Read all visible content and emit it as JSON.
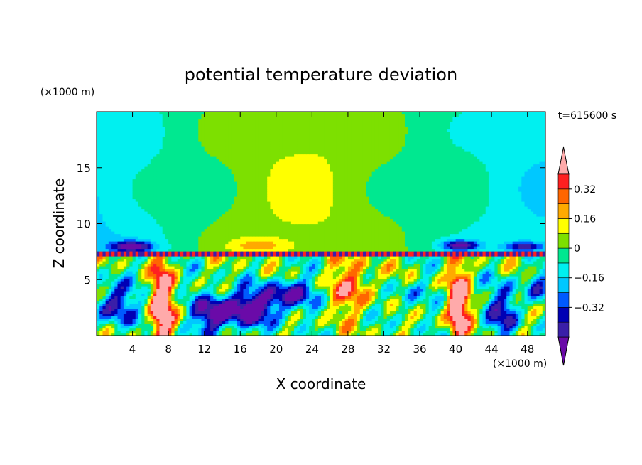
{
  "chart_data": {
    "type": "heatmap",
    "title": "potential temperature deviation",
    "xlabel": "X coordinate",
    "ylabel": "Z coordinate",
    "x_unit": "(×1000 m)",
    "y_unit": "(×1000 m)",
    "time_label": "t=615600 s",
    "xlim": [
      0,
      50
    ],
    "ylim": [
      0,
      20
    ],
    "x_ticks": [
      4,
      8,
      12,
      16,
      20,
      24,
      28,
      32,
      36,
      40,
      44,
      48
    ],
    "y_ticks": [
      5,
      10,
      15
    ],
    "colorbar": {
      "levels": [
        -0.48,
        -0.4,
        -0.32,
        -0.24,
        -0.16,
        -0.08,
        0,
        0.08,
        0.16,
        0.24,
        0.32,
        0.4
      ],
      "colors": [
        "#6a0aa8",
        "#3a1fa8",
        "#0000b4",
        "#005aff",
        "#00c8ff",
        "#00f0f0",
        "#00e890",
        "#7de000",
        "#ffff00",
        "#ffaa00",
        "#ff6600",
        "#ff2020",
        "#ffaaaa"
      ],
      "tick_labels": [
        "0.32",
        "0.16",
        "0",
        "-0.16",
        "-0.32"
      ],
      "tick_values": [
        0.32,
        0.16,
        0,
        -0.16,
        -0.32
      ],
      "extend": "both"
    },
    "grid": false
  }
}
